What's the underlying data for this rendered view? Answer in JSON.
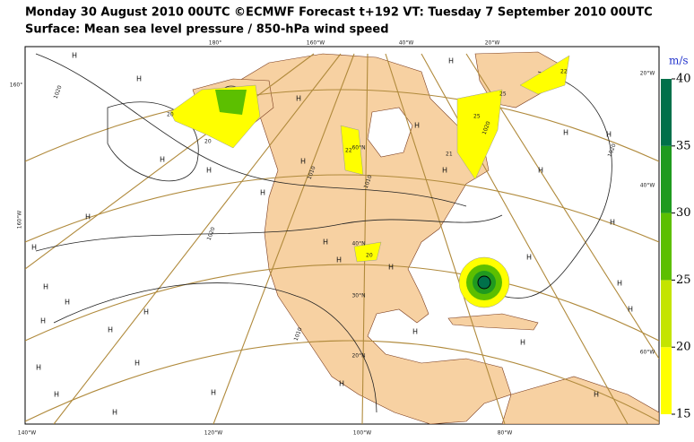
{
  "header": {
    "line1": "Monday 30 August 2010 00UTC ©ECMWF Forecast t+192 VT: Tuesday 7 September 2010 00UTC",
    "line2": "Surface: Mean sea level pressure / 850-hPa wind speed"
  },
  "colorbar": {
    "unit": "m/s",
    "ticks": [
      15,
      20,
      25,
      30,
      35,
      40
    ],
    "colors": [
      "#ffff00",
      "#c4e400",
      "#5cbf00",
      "#1f9a1f",
      "#00704a"
    ]
  },
  "graticule_labels": [
    "180°",
    "160°W",
    "40°W",
    "20°W",
    "160°",
    "160°W",
    "20°W",
    "40°W",
    "60°W",
    "140°W",
    "120°W",
    "100°W",
    "80°W",
    "60°N",
    "40°N",
    "30°N",
    "20°N"
  ],
  "isobar_labels": [
    "1020",
    "1010",
    "1020",
    "1010",
    "1010",
    "1020",
    "1020"
  ],
  "wind_labels": [
    "20",
    "22",
    "25",
    "20",
    "21",
    "22",
    "25",
    "20"
  ],
  "high_label": "H"
}
